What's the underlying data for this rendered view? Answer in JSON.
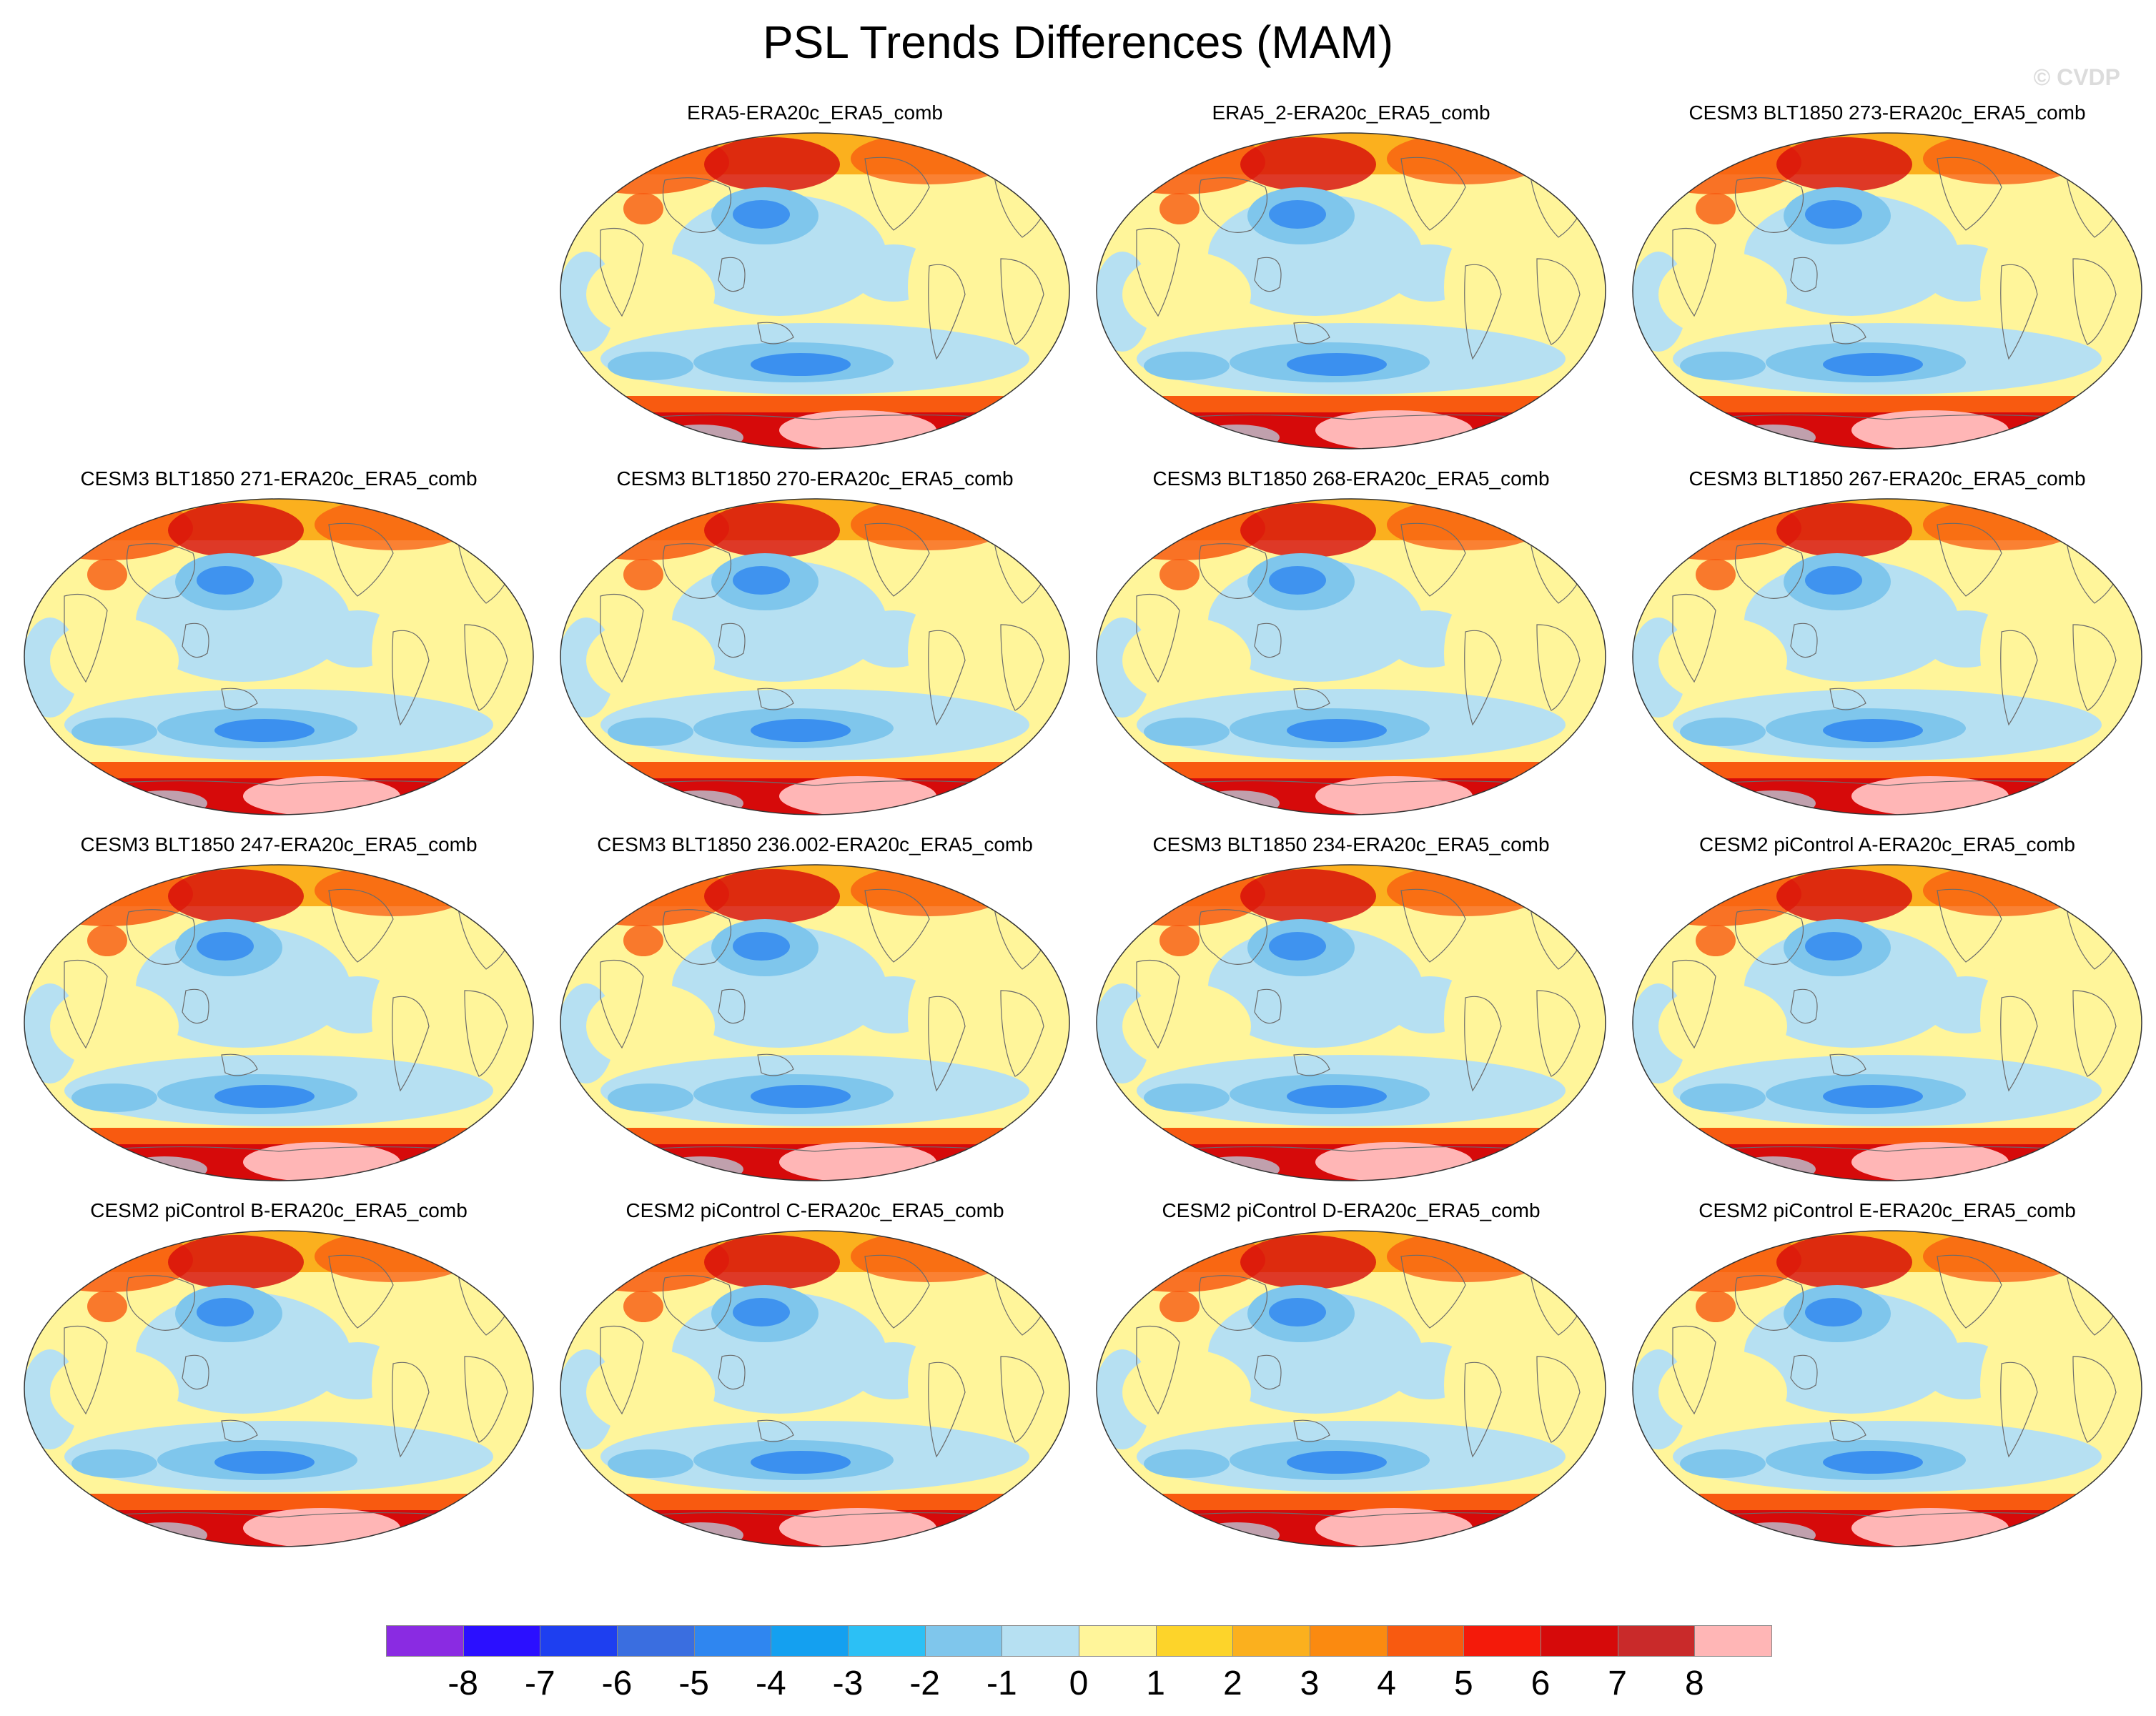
{
  "title": "PSL Trends Differences (MAM)",
  "watermark": "© CVDP",
  "panels": [
    {
      "title": "ERA5-ERA20c_ERA5_comb"
    },
    {
      "title": "ERA5_2-ERA20c_ERA5_comb"
    },
    {
      "title": "CESM3 BLT1850 273-ERA20c_ERA5_comb"
    },
    {
      "title": "CESM3 BLT1850 271-ERA20c_ERA5_comb"
    },
    {
      "title": "CESM3 BLT1850 270-ERA20c_ERA5_comb"
    },
    {
      "title": "CESM3 BLT1850 268-ERA20c_ERA5_comb"
    },
    {
      "title": "CESM3 BLT1850 267-ERA20c_ERA5_comb"
    },
    {
      "title": "CESM3 BLT1850 247-ERA20c_ERA5_comb"
    },
    {
      "title": "CESM3 BLT1850 236.002-ERA20c_ERA5_comb"
    },
    {
      "title": "CESM3 BLT1850 234-ERA20c_ERA5_comb"
    },
    {
      "title": "CESM2 piControl A-ERA20c_ERA5_comb"
    },
    {
      "title": "CESM2 piControl B-ERA20c_ERA5_comb"
    },
    {
      "title": "CESM2 piControl C-ERA20c_ERA5_comb"
    },
    {
      "title": "CESM2 piControl D-ERA20c_ERA5_comb"
    },
    {
      "title": "CESM2 piControl E-ERA20c_ERA5_comb"
    }
  ],
  "colorbar": {
    "labels": [
      "-8",
      "-7",
      "-6",
      "-5",
      "-4",
      "-3",
      "-2",
      "-1",
      "0",
      "1",
      "2",
      "3",
      "4",
      "5",
      "6",
      "7",
      "8"
    ],
    "colors": [
      "#8a2be2",
      "#2b0fff",
      "#1e3ff0",
      "#3a6ee0",
      "#2f86f0",
      "#14a0f0",
      "#2cc0f5",
      "#7fc6ec",
      "#b6e0f2",
      "#fff59a",
      "#fdd42a",
      "#fbb01e",
      "#fb8a10",
      "#f85a10",
      "#f41a0a",
      "#d60a0a",
      "#c92a2a",
      "#ffb6b6"
    ]
  },
  "map_colors": {
    "land_outline": "#6b6b6b",
    "base": "#fff59a",
    "blue_light": "#b6e0f2",
    "blue_mid": "#7fc6ec",
    "blue_dark": "#2f86f0",
    "orange": "#fbb01e",
    "red_orange": "#f85a10",
    "red": "#d60a0a",
    "pink": "#ffb6b6"
  }
}
